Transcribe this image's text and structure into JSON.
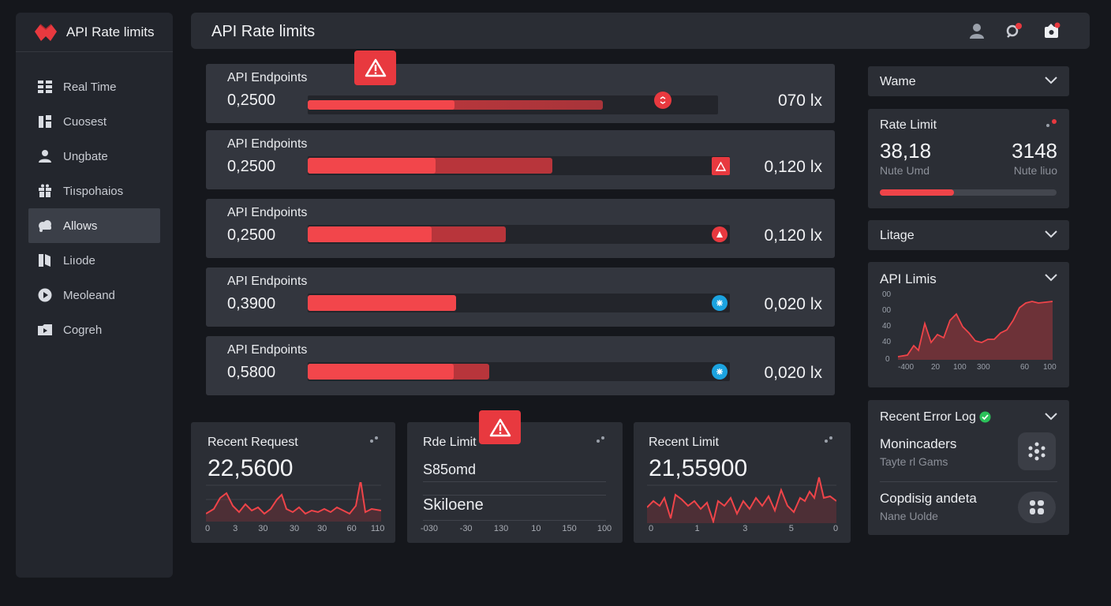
{
  "app": {
    "name": "API Rate limits"
  },
  "sidebar": {
    "items": [
      {
        "label": "Real Time",
        "icon": "grid-icon"
      },
      {
        "label": "Cuosest",
        "icon": "columns-icon"
      },
      {
        "label": "Ungbate",
        "icon": "user-icon"
      },
      {
        "label": "Tiıspohaios",
        "icon": "gift-icon"
      },
      {
        "label": "Allows",
        "icon": "cloud-icon"
      },
      {
        "label": "Liıode",
        "icon": "book-icon"
      },
      {
        "label": "Meoleand",
        "icon": "play-circle-icon"
      },
      {
        "label": "Cogreh",
        "icon": "folder-icon"
      }
    ]
  },
  "header": {
    "title": "API Rate limits"
  },
  "endpoints": [
    {
      "label": "API Endpoints",
      "value": "0,2500",
      "rate": "070 lx",
      "level": 0.72,
      "marker": "error-circle"
    },
    {
      "label": "API Endpoints",
      "value": "0,2500",
      "rate": "0,120 lx",
      "level": 0.58,
      "marker": "warning-square"
    },
    {
      "label": "API Endpoints",
      "value": "0,2500",
      "rate": "0,120 lx",
      "level": 0.47,
      "marker": "error-circle"
    },
    {
      "label": "API Endpoints",
      "value": "0,3900",
      "rate": "0,020 lx",
      "level": 0.35,
      "marker": "info-circle"
    },
    {
      "label": "API Endpoints",
      "value": "0,5800",
      "rate": "0,020 lx",
      "level": 0.43,
      "marker": "info-circle"
    }
  ],
  "cards": {
    "recent_request": {
      "title": "Recent Request",
      "value": "22,5600",
      "ticks": [
        "0",
        "3",
        "30",
        "30",
        "30",
        "60",
        "110"
      ]
    },
    "rate_limit": {
      "title": "Rde Limit",
      "line1": "S85omd",
      "line2": "Skiloene",
      "ticks": [
        "-030",
        "-30",
        "130",
        "10",
        "150",
        "100"
      ]
    },
    "recent_limit": {
      "title": "Recent Limit",
      "value": "21,55900",
      "ticks": [
        "0",
        "1",
        "3",
        "5",
        "0"
      ]
    }
  },
  "right": {
    "dropdown1": {
      "label": "Wame"
    },
    "rate_limit": {
      "title": "Rate Limit",
      "left_value": "38,18",
      "left_sub": "Nute Umd",
      "right_value": "3148",
      "right_sub": "Nute liuo",
      "progress": 0.42
    },
    "dropdown2": {
      "label": "Litage"
    },
    "api_limits": {
      "title": "API Limis",
      "yticks": [
        "00",
        "00",
        "40",
        "40",
        "0"
      ],
      "xticks": [
        "-400",
        "20",
        "100",
        "300",
        "60",
        "100"
      ]
    },
    "error_log": {
      "title": "Recent Error Log",
      "items": [
        {
          "title": "Monincaders",
          "sub": "Tayte rl Gams",
          "icon": "asterisk-icon"
        },
        {
          "title": "Copdisig andeta",
          "sub": "Nane Uolde",
          "icon": "apps-icon"
        }
      ]
    }
  },
  "colors": {
    "accent": "#f2464b",
    "info": "#1ba3e0",
    "success": "#2bc25a"
  }
}
